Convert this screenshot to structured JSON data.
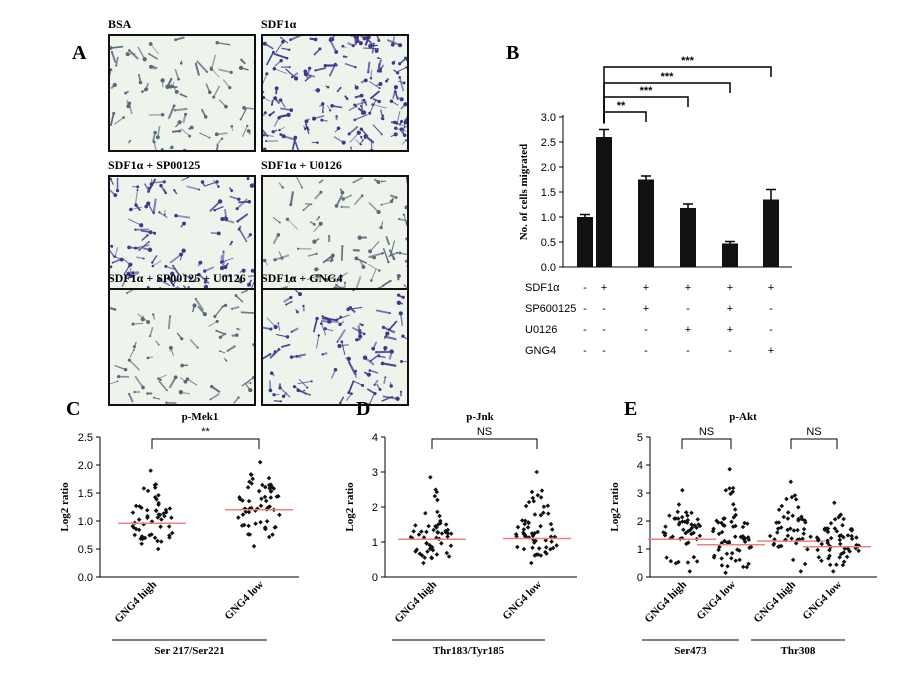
{
  "panels": {
    "A": {
      "letter": "A",
      "images": [
        {
          "label": "BSA",
          "density": 0.35,
          "stain": "light"
        },
        {
          "label": "SDF1α",
          "density": 1.0,
          "stain": "dark"
        },
        {
          "label": "SDF1α + SP00125",
          "density": 0.7,
          "stain": "dark"
        },
        {
          "label": "SDF1α + U0126",
          "density": 0.45,
          "stain": "light"
        },
        {
          "label": "SDF1α + SP00125 + U0126",
          "density": 0.25,
          "stain": "light"
        },
        {
          "label": "SDF1α + GNG4",
          "density": 0.55,
          "stain": "dark"
        }
      ]
    },
    "B": {
      "letter": "B"
    },
    "C": {
      "letter": "C"
    },
    "D": {
      "letter": "D"
    },
    "E": {
      "letter": "E"
    }
  },
  "colors": {
    "bar": "#111111",
    "median_line": "#f08080",
    "micro_bg": "#eef3ec",
    "cell_dark": "#3a3a8c",
    "cell_light": "#5a6a7a"
  },
  "chart_data": [
    {
      "panel": "B",
      "type": "bar",
      "ylabel": "No. of cells migrated",
      "ylim": [
        0,
        3.0
      ],
      "yticks": [
        "0.0",
        "0.5",
        "1.0",
        "1.5",
        "2.0",
        "2.5",
        "3.0"
      ],
      "values": [
        1.0,
        2.6,
        1.75,
        1.18,
        0.47,
        1.35
      ],
      "errors": [
        0.05,
        0.15,
        0.07,
        0.08,
        0.04,
        0.2
      ],
      "treatment_rows": [
        {
          "label": "SDF1α",
          "marks": [
            "-",
            "+",
            "+",
            "+",
            "+",
            "+"
          ]
        },
        {
          "label": "SP600125",
          "marks": [
            "-",
            "-",
            "+",
            "-",
            "+",
            "-"
          ]
        },
        {
          "label": "U0126",
          "marks": [
            "-",
            "-",
            "-",
            "+",
            "+",
            "-"
          ]
        },
        {
          "label": "GNG4",
          "marks": [
            "-",
            "-",
            "-",
            "-",
            "-",
            "+"
          ]
        }
      ],
      "significance": [
        {
          "from": 1,
          "to": 2,
          "label": "**"
        },
        {
          "from": 1,
          "to": 3,
          "label": "***"
        },
        {
          "from": 1,
          "to": 4,
          "label": "***"
        },
        {
          "from": 1,
          "to": 5,
          "label": "***"
        }
      ]
    },
    {
      "panel": "C",
      "type": "scatter",
      "title": "p-Mek1",
      "ylabel": "Log2 ratio",
      "ylim": [
        0,
        2.5
      ],
      "yticks": [
        "0.0",
        "0.5",
        "1.0",
        "1.5",
        "2.0",
        "2.5"
      ],
      "categories": [
        "GNG4 high",
        "GNG4 low"
      ],
      "group_labels": [
        {
          "label": "Ser 217/Ser221",
          "from": 0,
          "to": 1
        }
      ],
      "medians": [
        0.96,
        1.2
      ],
      "groups": [
        {
          "name": "GNG4 high",
          "n": 55,
          "min": 0.5,
          "max": 1.9,
          "center": 0.96
        },
        {
          "name": "GNG4 low",
          "n": 60,
          "min": 0.55,
          "max": 2.05,
          "center": 1.2
        }
      ],
      "significance": [
        {
          "from": 0,
          "to": 1,
          "label": "**"
        }
      ]
    },
    {
      "panel": "D",
      "type": "scatter",
      "title": "p-Jnk",
      "ylabel": "Log2 ratio",
      "ylim": [
        0,
        4
      ],
      "yticks": [
        "0",
        "1",
        "2",
        "3",
        "4"
      ],
      "categories": [
        "GNG4 high",
        "GNG4 low"
      ],
      "group_labels": [
        {
          "label": "Thr183/Tyr185",
          "from": 0,
          "to": 1
        }
      ],
      "medians": [
        1.08,
        1.1
      ],
      "groups": [
        {
          "name": "GNG4 high",
          "n": 55,
          "min": 0.4,
          "max": 2.85,
          "center": 1.08
        },
        {
          "name": "GNG4 low",
          "n": 60,
          "min": 0.4,
          "max": 3.0,
          "center": 1.1
        }
      ],
      "significance": [
        {
          "from": 0,
          "to": 1,
          "label": "NS"
        }
      ]
    },
    {
      "panel": "E",
      "type": "scatter",
      "title": "p-Akt",
      "ylabel": "Log2 ratio",
      "ylim": [
        0,
        5
      ],
      "yticks": [
        "0",
        "1",
        "2",
        "3",
        "4",
        "5"
      ],
      "categories": [
        "GNG4 high",
        "GNG4 low",
        "GNG4 high",
        "GNG4 low"
      ],
      "group_labels": [
        {
          "label": "Ser473",
          "from": 0,
          "to": 1
        },
        {
          "label": "Thr308",
          "from": 2,
          "to": 3
        }
      ],
      "medians": [
        1.35,
        1.15,
        1.28,
        1.08
      ],
      "groups": [
        {
          "name": "GNG4 high",
          "n": 50,
          "min": 0.2,
          "max": 3.1,
          "center": 1.35
        },
        {
          "name": "GNG4 low",
          "n": 60,
          "min": 0.15,
          "max": 3.85,
          "center": 1.15
        },
        {
          "name": "GNG4 high",
          "n": 50,
          "min": 0.2,
          "max": 3.4,
          "center": 1.28
        },
        {
          "name": "GNG4 low",
          "n": 60,
          "min": 0.2,
          "max": 2.65,
          "center": 1.08
        }
      ],
      "significance": [
        {
          "from": 0,
          "to": 1,
          "label": "NS"
        },
        {
          "from": 2,
          "to": 3,
          "label": "NS"
        }
      ]
    }
  ]
}
